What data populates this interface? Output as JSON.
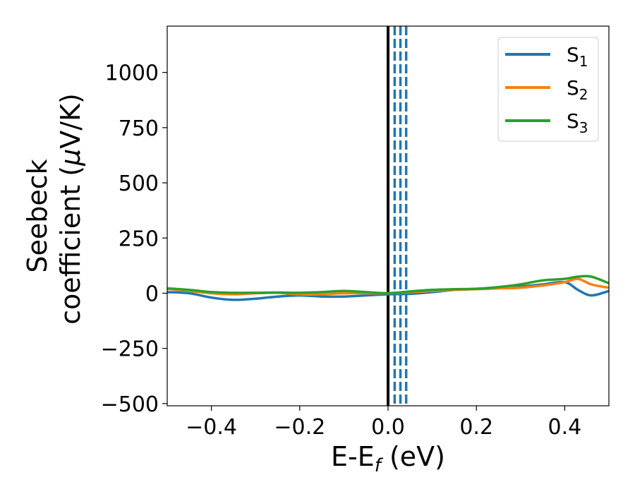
{
  "chart_data": {
    "type": "line",
    "xlabel": {
      "main": "E-E",
      "sub": "f",
      "unit": " (eV)"
    },
    "ylabel": {
      "line1": "Seebeck",
      "line2_pre": "coefficient  (",
      "line2_mu": "μ",
      "line2_post": "V/K)"
    },
    "xlim": [
      -0.5,
      0.5
    ],
    "ylim": [
      -510,
      1210
    ],
    "xticks": [
      -0.4,
      -0.2,
      0.0,
      0.2,
      0.4
    ],
    "xtick_labels": [
      "−0.4",
      "−0.2",
      "0.0",
      "0.2",
      "0.4"
    ],
    "yticks": [
      -500,
      -250,
      0,
      250,
      500,
      750,
      1000
    ],
    "ytick_labels": [
      "−500",
      "−250",
      "0",
      "250",
      "500",
      "750",
      "1000"
    ],
    "grid": false,
    "legend_position": "top-right",
    "series": [
      {
        "name": "S",
        "sub": "1",
        "color": "#1f77b4",
        "x": [
          -0.5,
          -0.45,
          -0.4,
          -0.35,
          -0.3,
          -0.25,
          -0.2,
          -0.15,
          -0.1,
          -0.05,
          0.0,
          0.05,
          0.1,
          0.15,
          0.2,
          0.25,
          0.3,
          0.35,
          0.4,
          0.43,
          0.46,
          0.5
        ],
        "y": [
          5,
          0,
          -20,
          -30,
          -25,
          -15,
          -10,
          -15,
          -15,
          -10,
          -5,
          -3,
          5,
          15,
          20,
          25,
          30,
          40,
          50,
          15,
          -10,
          10
        ]
      },
      {
        "name": "S",
        "sub": "2",
        "color": "#ff7f0e",
        "x": [
          -0.5,
          -0.45,
          -0.4,
          -0.35,
          -0.3,
          -0.25,
          -0.2,
          -0.15,
          -0.1,
          -0.05,
          0.0,
          0.05,
          0.1,
          0.15,
          0.2,
          0.25,
          0.3,
          0.35,
          0.4,
          0.43,
          0.46,
          0.5
        ],
        "y": [
          20,
          10,
          0,
          -5,
          0,
          2,
          -5,
          -5,
          0,
          0,
          0,
          5,
          10,
          15,
          18,
          22,
          25,
          35,
          50,
          65,
          40,
          25
        ]
      },
      {
        "name": "S",
        "sub": "3",
        "color": "#2ca02c",
        "x": [
          -0.5,
          -0.45,
          -0.4,
          -0.35,
          -0.3,
          -0.25,
          -0.2,
          -0.15,
          -0.1,
          -0.05,
          0.0,
          0.05,
          0.1,
          0.15,
          0.2,
          0.25,
          0.3,
          0.35,
          0.4,
          0.43,
          0.46,
          0.5
        ],
        "y": [
          22,
          15,
          5,
          2,
          2,
          3,
          2,
          5,
          10,
          5,
          0,
          8,
          15,
          18,
          20,
          28,
          40,
          58,
          65,
          75,
          75,
          45
        ]
      }
    ],
    "reference_lines": [
      {
        "x": 0.0,
        "style": "solid",
        "color": "#000000"
      },
      {
        "x": 0.015,
        "style": "dashed",
        "color": "#1f77b4"
      },
      {
        "x": 0.028,
        "style": "dashed",
        "color": "#1f77b4"
      },
      {
        "x": 0.041,
        "style": "dashed",
        "color": "#1f77b4"
      }
    ]
  }
}
